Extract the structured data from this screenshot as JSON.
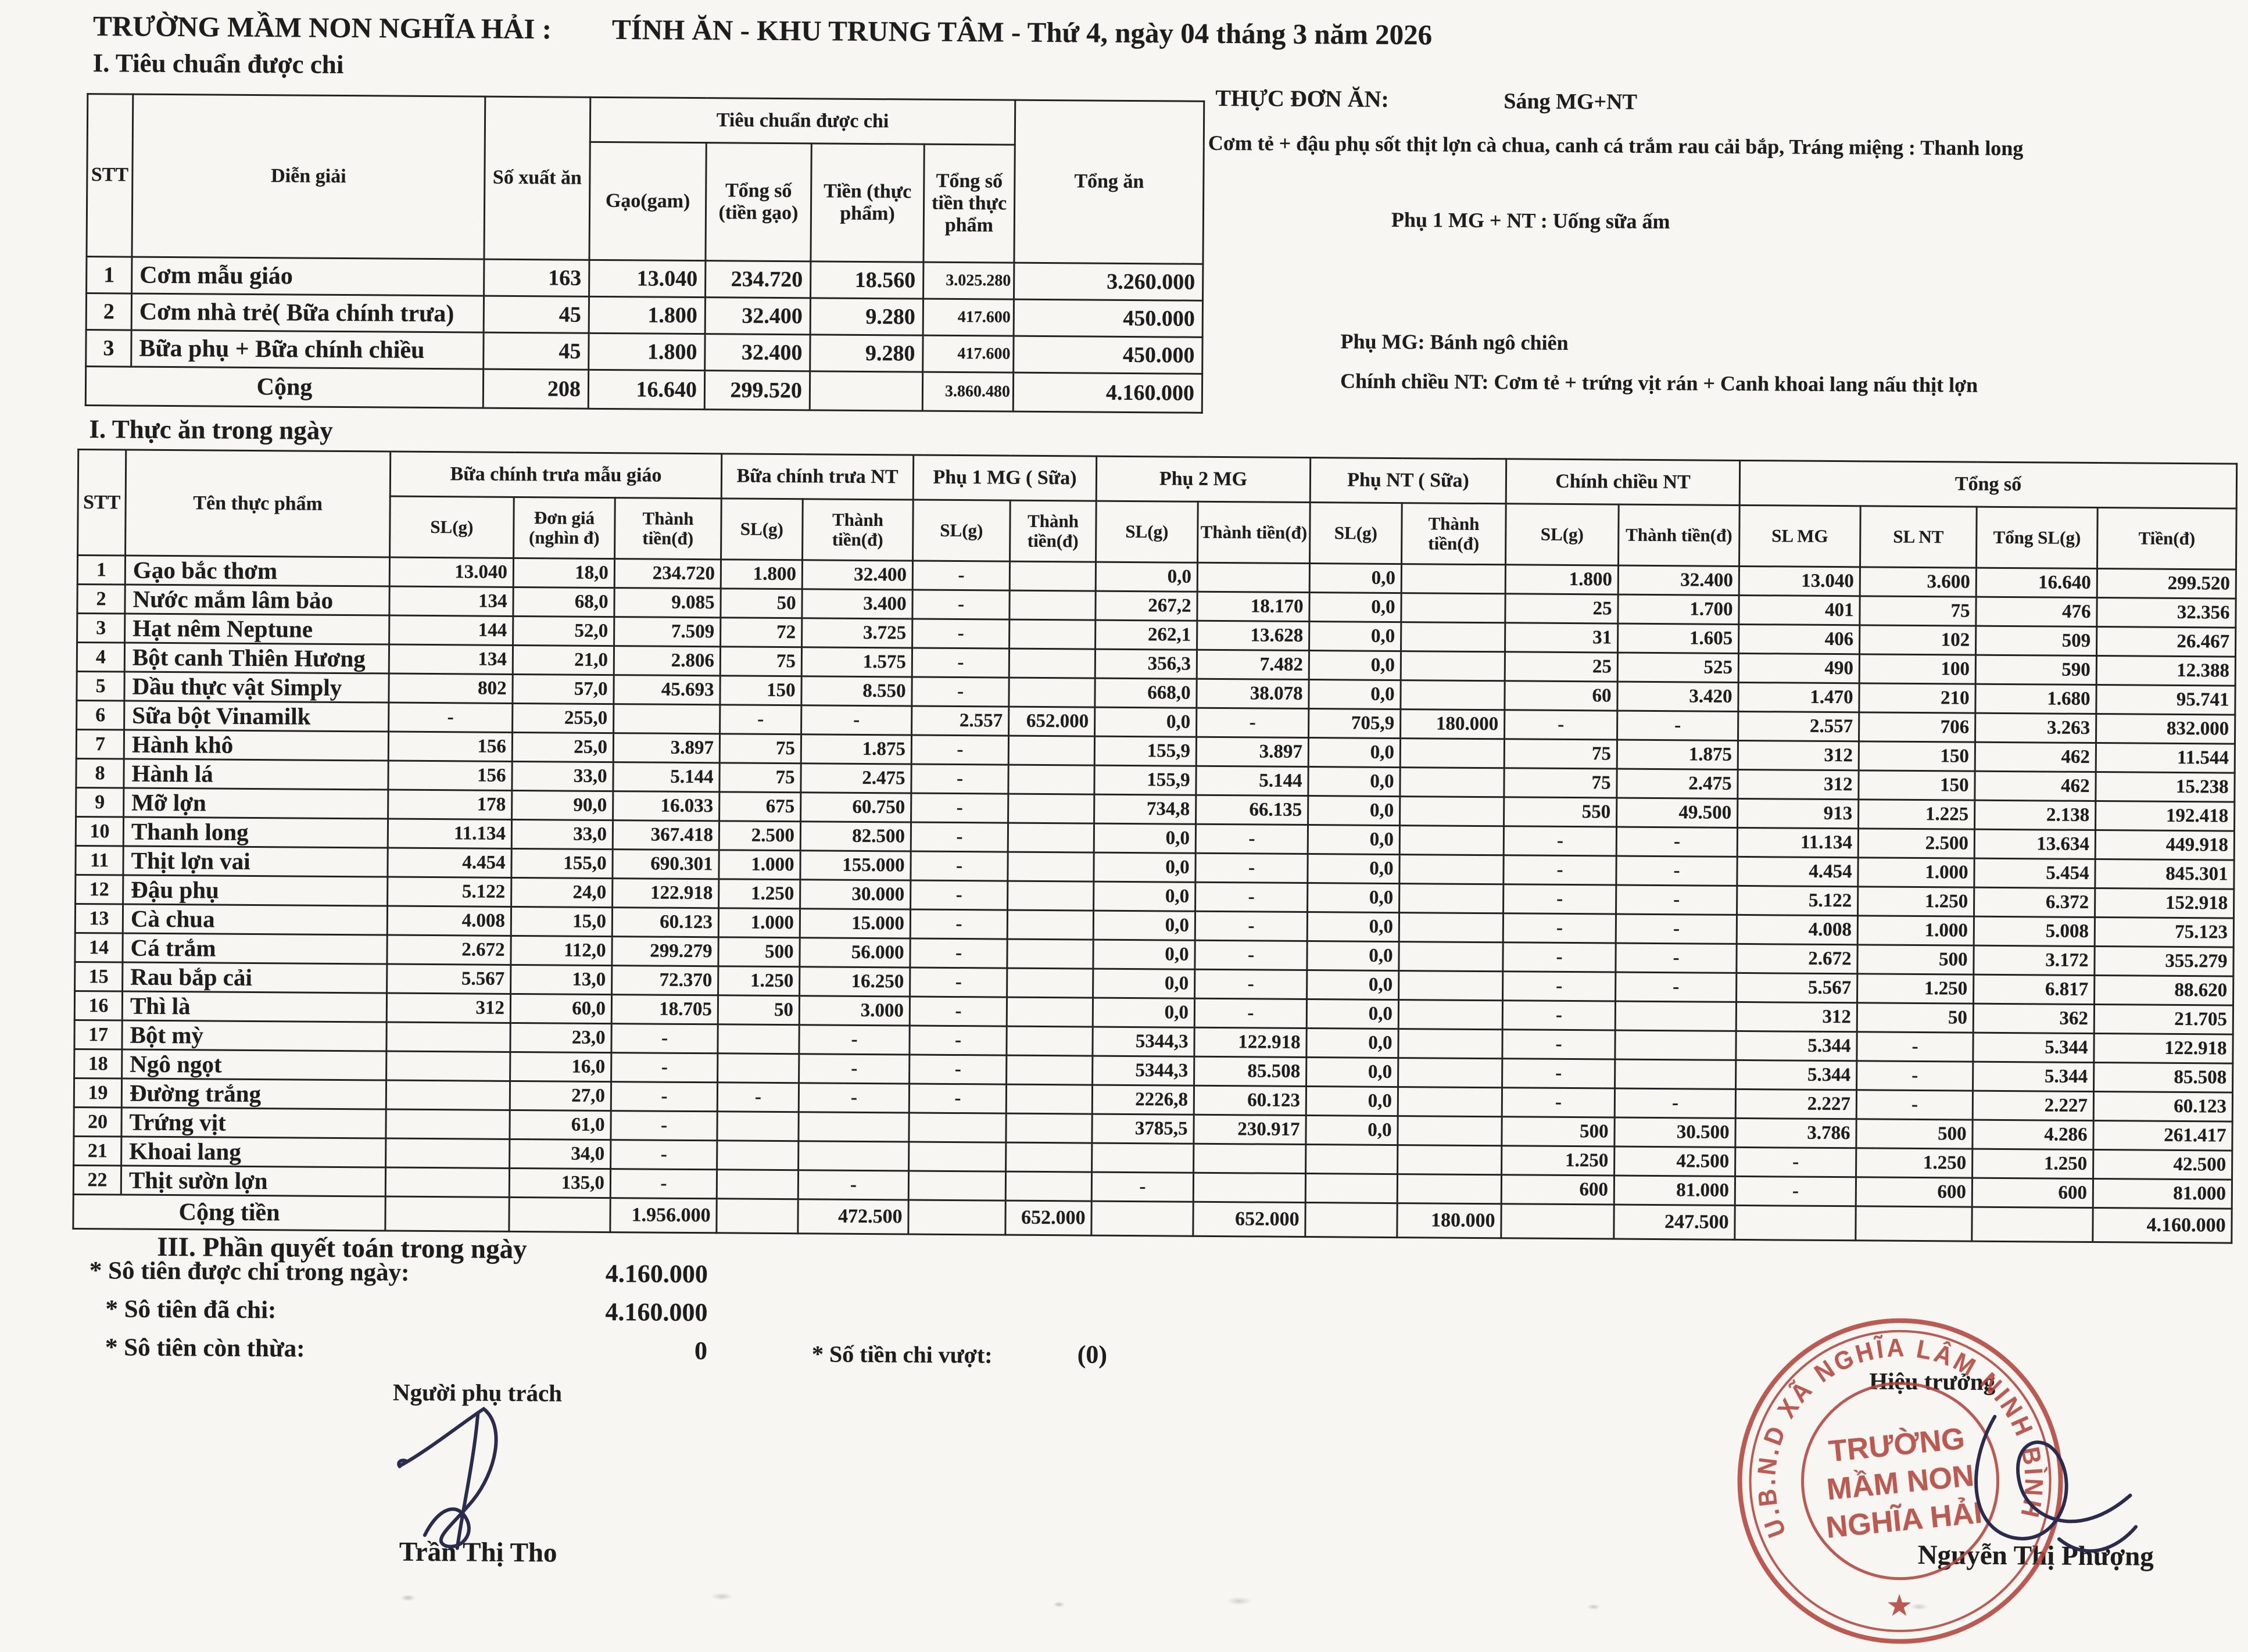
{
  "page": {
    "school": "TRƯỜNG MẦM NON NGHĨA HẢI :",
    "title": "TÍNH ĂN - KHU TRUNG TÂM - Thứ 4, ngày 04 tháng 3 năm 2026",
    "section1_heading": "I. Tiêu chuẩn được chi",
    "section2_heading": "I. Thực ăn trong ngày",
    "section3_heading": "III. Phần quyết toán trong ngày"
  },
  "menu": {
    "label": "THỰC ĐƠN ĂN:",
    "morning": "Sáng MG+NT",
    "line1": "Cơm tẻ + đậu phụ sốt thịt lợn cà chua, canh cá trắm rau cải bắp, Tráng miệng : Thanh long",
    "line2": "Phụ 1 MG + NT : Uống sữa ấm",
    "line3": "Phụ MG: Bánh ngô chiên",
    "line4": "Chính chiều NT:  Cơm tẻ + trứng vịt rán + Canh khoai lang nấu thịt lợn"
  },
  "table1": {
    "h": {
      "stt": "STT",
      "dien": "Diễn giải",
      "soxuat": "Số xuất ăn",
      "group": "Tiêu chuẩn được chi",
      "gao": "Gạo(gam)",
      "tongso": "Tổng số (tiền gạo)",
      "tien": "Tiền (thực phẩm)",
      "tongtp": "Tổng số tiền thực phẩm",
      "tongan": "Tổng ăn"
    },
    "rows": [
      [
        "1",
        "Cơm mẫu giáo",
        "163",
        "13.040",
        "234.720",
        "18.560",
        "3.025.280",
        "3.260.000"
      ],
      [
        "2",
        "Cơm nhà trẻ( Bữa chính trưa)",
        "45",
        "1.800",
        "32.400",
        "9.280",
        "417.600",
        "450.000"
      ],
      [
        "3",
        "Bữa phụ + Bữa chính chiều",
        "45",
        "1.800",
        "32.400",
        "9.280",
        "417.600",
        "450.000"
      ]
    ],
    "total": [
      "Cộng",
      "208",
      "16.640",
      "299.520",
      "",
      "3.860.480",
      "4.160.000"
    ]
  },
  "table2": {
    "h": {
      "stt": "STT",
      "ten": "Tên thực phẩm",
      "g1": "Bữa chính trưa mẫu giáo",
      "g2": "Bữa chính trưa NT",
      "g3": "Phụ 1 MG ( Sữa)",
      "g4": "Phụ 2 MG",
      "g5": "Phụ NT ( Sữa)",
      "g6": "Chính chiều NT",
      "g7": "Tổng số"
    },
    "sub": [
      "SL(g)",
      "Đơn giá (nghìn đ)",
      "Thành tiền(đ)",
      "SL(g)",
      "Thành tiền(đ)",
      "SL(g)",
      "Thành tiền(đ)",
      "SL(g)",
      "Thành tiền(đ)",
      "SL(g)",
      "Thành tiền(đ)",
      "SL(g)",
      "Thành tiền(đ)",
      "SL MG",
      "SL NT",
      "Tổng SL(g)",
      "Tiền(đ)"
    ],
    "rows": [
      [
        "1",
        "Gạo bắc thơm",
        "13.040",
        "18,0",
        "234.720",
        "1.800",
        "32.400",
        "-",
        "",
        "0,0",
        "",
        "0,0",
        "",
        "1.800",
        "32.400",
        "13.040",
        "3.600",
        "16.640",
        "299.520"
      ],
      [
        "2",
        "Nước mắm lâm bảo",
        "134",
        "68,0",
        "9.085",
        "50",
        "3.400",
        "-",
        "",
        "267,2",
        "18.170",
        "0,0",
        "",
        "25",
        "1.700",
        "401",
        "75",
        "476",
        "32.356"
      ],
      [
        "3",
        "Hạt nêm Neptune",
        "144",
        "52,0",
        "7.509",
        "72",
        "3.725",
        "-",
        "",
        "262,1",
        "13.628",
        "0,0",
        "",
        "31",
        "1.605",
        "406",
        "102",
        "509",
        "26.467"
      ],
      [
        "4",
        "Bột canh Thiên Hương",
        "134",
        "21,0",
        "2.806",
        "75",
        "1.575",
        "-",
        "",
        "356,3",
        "7.482",
        "0,0",
        "",
        "25",
        "525",
        "490",
        "100",
        "590",
        "12.388"
      ],
      [
        "5",
        "Dầu thực vật Simply",
        "802",
        "57,0",
        "45.693",
        "150",
        "8.550",
        "-",
        "",
        "668,0",
        "38.078",
        "0,0",
        "",
        "60",
        "3.420",
        "1.470",
        "210",
        "1.680",
        "95.741"
      ],
      [
        "6",
        "Sữa bột Vinamilk",
        "-",
        "255,0",
        "",
        "-",
        "-",
        "2.557",
        "652.000",
        "0,0",
        "-",
        "705,9",
        "180.000",
        "-",
        "-",
        "2.557",
        "706",
        "3.263",
        "832.000"
      ],
      [
        "7",
        "Hành khô",
        "156",
        "25,0",
        "3.897",
        "75",
        "1.875",
        "-",
        "",
        "155,9",
        "3.897",
        "0,0",
        "",
        "75",
        "1.875",
        "312",
        "150",
        "462",
        "11.544"
      ],
      [
        "8",
        "Hành lá",
        "156",
        "33,0",
        "5.144",
        "75",
        "2.475",
        "-",
        "",
        "155,9",
        "5.144",
        "0,0",
        "",
        "75",
        "2.475",
        "312",
        "150",
        "462",
        "15.238"
      ],
      [
        "9",
        "Mỡ lợn",
        "178",
        "90,0",
        "16.033",
        "675",
        "60.750",
        "-",
        "",
        "734,8",
        "66.135",
        "0,0",
        "",
        "550",
        "49.500",
        "913",
        "1.225",
        "2.138",
        "192.418"
      ],
      [
        "10",
        "Thanh long",
        "11.134",
        "33,0",
        "367.418",
        "2.500",
        "82.500",
        "-",
        "",
        "0,0",
        "-",
        "0,0",
        "",
        "-",
        "-",
        "11.134",
        "2.500",
        "13.634",
        "449.918"
      ],
      [
        "11",
        "Thịt lợn vai",
        "4.454",
        "155,0",
        "690.301",
        "1.000",
        "155.000",
        "-",
        "",
        "0,0",
        "-",
        "0,0",
        "",
        "-",
        "-",
        "4.454",
        "1.000",
        "5.454",
        "845.301"
      ],
      [
        "12",
        "Đậu phụ",
        "5.122",
        "24,0",
        "122.918",
        "1.250",
        "30.000",
        "-",
        "",
        "0,0",
        "-",
        "0,0",
        "",
        "-",
        "-",
        "5.122",
        "1.250",
        "6.372",
        "152.918"
      ],
      [
        "13",
        "Cà chua",
        "4.008",
        "15,0",
        "60.123",
        "1.000",
        "15.000",
        "-",
        "",
        "0,0",
        "-",
        "0,0",
        "",
        "-",
        "-",
        "4.008",
        "1.000",
        "5.008",
        "75.123"
      ],
      [
        "14",
        "Cá trắm",
        "2.672",
        "112,0",
        "299.279",
        "500",
        "56.000",
        "-",
        "",
        "0,0",
        "-",
        "0,0",
        "",
        "-",
        "-",
        "2.672",
        "500",
        "3.172",
        "355.279"
      ],
      [
        "15",
        "Rau bắp cải",
        "5.567",
        "13,0",
        "72.370",
        "1.250",
        "16.250",
        "-",
        "",
        "0,0",
        "-",
        "0,0",
        "",
        "-",
        "-",
        "5.567",
        "1.250",
        "6.817",
        "88.620"
      ],
      [
        "16",
        "Thì là",
        "312",
        "60,0",
        "18.705",
        "50",
        "3.000",
        "-",
        "",
        "0,0",
        "-",
        "0,0",
        "",
        "-",
        "",
        "312",
        "50",
        "362",
        "21.705"
      ],
      [
        "17",
        "Bột mỳ",
        "",
        "23,0",
        "-",
        "",
        "-",
        "-",
        "",
        "5344,3",
        "122.918",
        "0,0",
        "",
        "-",
        "",
        "5.344",
        "-",
        "5.344",
        "122.918"
      ],
      [
        "18",
        "Ngô ngọt",
        "",
        "16,0",
        "-",
        "",
        "-",
        "-",
        "",
        "5344,3",
        "85.508",
        "0,0",
        "",
        "-",
        "",
        "5.344",
        "-",
        "5.344",
        "85.508"
      ],
      [
        "19",
        "Đường trắng",
        "",
        "27,0",
        "-",
        "-",
        "-",
        "-",
        "",
        "2226,8",
        "60.123",
        "0,0",
        "",
        "-",
        "-",
        "2.227",
        "-",
        "2.227",
        "60.123"
      ],
      [
        "20",
        "Trứng vịt",
        "",
        "61,0",
        "-",
        "",
        "",
        "",
        "",
        "3785,5",
        "230.917",
        "0,0",
        "",
        "500",
        "30.500",
        "3.786",
        "500",
        "4.286",
        "261.417"
      ],
      [
        "21",
        "Khoai lang",
        "",
        "34,0",
        "-",
        "",
        "",
        "",
        "",
        "",
        "",
        "",
        "",
        "1.250",
        "42.500",
        "-",
        "1.250",
        "1.250",
        "42.500"
      ],
      [
        "22",
        "Thịt sườn lợn",
        "",
        "135,0",
        "-",
        "",
        "-",
        "",
        "",
        "-",
        "",
        "",
        "",
        "600",
        "81.000",
        "-",
        "600",
        "600",
        "81.000"
      ]
    ],
    "total": [
      "Cộng tiền",
      "",
      "",
      "1.956.000",
      "",
      "472.500",
      "",
      "652.000",
      "",
      "652.000",
      "",
      "180.000",
      "",
      "247.500",
      "",
      "",
      "",
      "4.160.000"
    ]
  },
  "settlement": {
    "line1_label": "* Sô tiên được chi trong ngày:",
    "line1_value": "4.160.000",
    "line2_label": "* Sô tiên đã chi:",
    "line2_value": "4.160.000",
    "line3_label": "* Sô tiên còn thừa:",
    "line3_value": "0",
    "line4_label": "* Số tiền chi vượt:",
    "line4_value": "(0)"
  },
  "signatures": {
    "left_role": "Người phụ trách",
    "left_name": "Trần Thị Tho",
    "right_role": "Hiệu trưởng",
    "right_name": "Nguyễn Thị Phượng"
  },
  "stamp": {
    "ring_text": "U.B.N.D XÃ   NGHĨA   LÂM   NINH  BÌNH",
    "center_line1": "TRƯỜNG",
    "center_line2": "MẦM NON",
    "center_line3": "NGHĨA HẢI",
    "star": "★"
  },
  "colors": {
    "stamp_red": "#b5443b",
    "ink_black": "#1d1d1d",
    "signature_ink": "#2b2b4e",
    "paper": "#f7f6f2"
  }
}
